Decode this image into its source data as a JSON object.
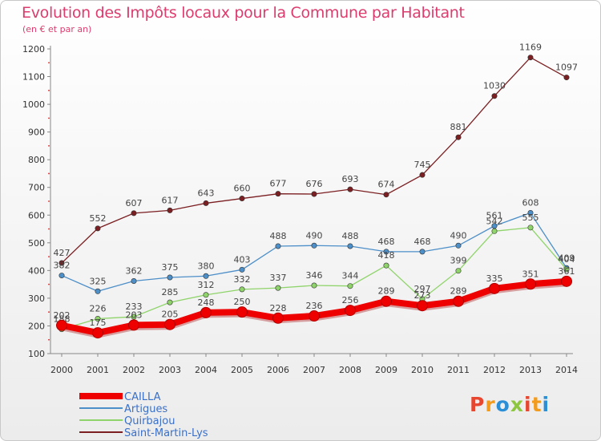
{
  "title": "Evolution des Impôts locaux pour la Commune par Habitant",
  "subtitle": "(en € et par an)",
  "logo": {
    "text": "Proxiti",
    "letters": [
      "P",
      "r",
      "o",
      "x",
      "i",
      "t",
      "i"
    ],
    "colors": [
      "#e8462f",
      "#f29b1c",
      "#2a8fd6",
      "#8dc63f",
      "#e8462f",
      "#f29b1c",
      "#2a8fd6"
    ]
  },
  "chart_data": {
    "type": "line",
    "x": [
      "2000",
      "2001",
      "2002",
      "2003",
      "2004",
      "2005",
      "2006",
      "2007",
      "2008",
      "2009",
      "2010",
      "2011",
      "2012",
      "2013",
      "2014"
    ],
    "ylim": [
      100,
      1200
    ],
    "yticks": [
      100,
      200,
      300,
      400,
      500,
      600,
      700,
      800,
      900,
      1000,
      1100,
      1200
    ],
    "grid": false,
    "legend_position": "bottom-left",
    "series": [
      {
        "name": "Saint-Martin-Lys",
        "color": "#7b1f22",
        "values": [
          427,
          552,
          607,
          617,
          643,
          660,
          677,
          676,
          693,
          674,
          745,
          881,
          1030,
          1169,
          1097
        ]
      },
      {
        "name": "Artigues",
        "color": "#4d8fc8",
        "values": [
          382,
          325,
          362,
          375,
          380,
          403,
          488,
          490,
          488,
          468,
          468,
          490,
          561,
          608,
          409
        ]
      },
      {
        "name": "Quirbajou",
        "color": "#8fd46a",
        "values": [
          188,
          226,
          233,
          285,
          312,
          332,
          337,
          346,
          344,
          418,
          297,
          399,
          542,
          555,
          404
        ]
      },
      {
        "name": "CAILLA",
        "color": "#ee0000",
        "values": [
          202,
          175,
          203,
          205,
          248,
          250,
          228,
          236,
          256,
          289,
          273,
          289,
          335,
          351,
          361
        ]
      }
    ],
    "legend_order": [
      "CAILLA",
      "Artigues",
      "Quirbajou",
      "Saint-Martin-Lys"
    ]
  }
}
